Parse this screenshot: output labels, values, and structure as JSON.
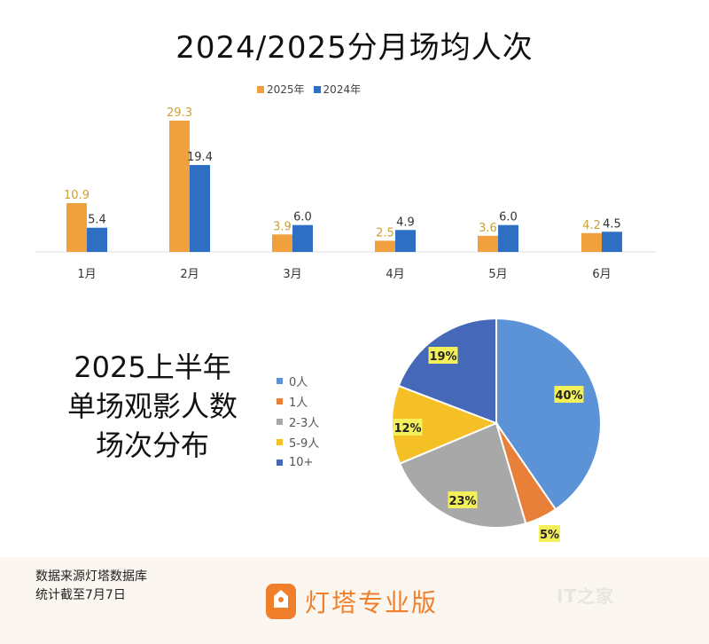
{
  "title": "2024/2025分月场均人次",
  "chart_data": [
    {
      "type": "bar",
      "title": "2024/2025分月场均人次",
      "categories": [
        "1月",
        "2月",
        "3月",
        "4月",
        "5月",
        "6月"
      ],
      "series": [
        {
          "name": "2025年",
          "values": [
            10.9,
            29.3,
            3.9,
            2.5,
            3.6,
            4.2
          ],
          "color": "#f0a03c",
          "label_color": "#c9a13a"
        },
        {
          "name": "2024年",
          "values": [
            5.4,
            19.4,
            6.0,
            4.9,
            6.0,
            4.5
          ],
          "color": "#2e6fc4",
          "label_color": "#333333"
        }
      ],
      "legend": "top",
      "grid": false,
      "ylim": [
        0,
        30
      ]
    },
    {
      "type": "pie",
      "title": "2025上半年单场观影人数场次分布",
      "title_lines": [
        "2025上半年",
        "单场观影人数",
        "场次分布"
      ],
      "slices": [
        {
          "label": "0人",
          "value": 40,
          "display": "40%",
          "color": "#5b93d6"
        },
        {
          "label": "1人",
          "value": 5,
          "display": "5%",
          "color": "#e8803a"
        },
        {
          "label": "2-3人",
          "value": 23,
          "display": "23%",
          "color": "#a8a8a8"
        },
        {
          "label": "5-9人",
          "value": 12,
          "display": "12%",
          "color": "#f5c026"
        },
        {
          "label": "10+",
          "value": 19,
          "display": "19%",
          "color": "#4668b8"
        }
      ],
      "legend": "left",
      "label_bg_color": "#f3f05a"
    }
  ],
  "footer": {
    "source_line1": "数据来源灯塔数据库",
    "source_line2": "统计截至7月7日",
    "brand_name": "灯塔专业版",
    "brand_color": "#ef7f2b",
    "watermark": "IT之家"
  }
}
